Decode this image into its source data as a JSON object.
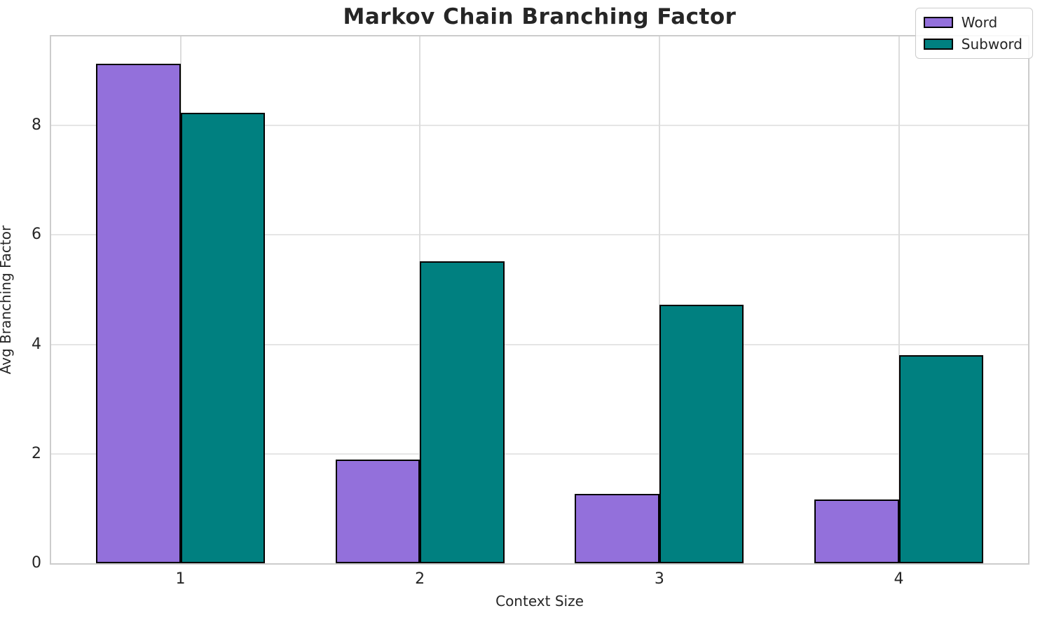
{
  "chart_data": {
    "type": "bar",
    "title": "Markov Chain Branching Factor",
    "xlabel": "Context Size",
    "ylabel": "Avg Branching Factor",
    "categories": [
      "1",
      "2",
      "3",
      "4"
    ],
    "x": [
      1,
      2,
      3,
      4
    ],
    "series": [
      {
        "name": "Word",
        "color": "#9370DB",
        "values": [
          9.13,
          1.9,
          1.27,
          1.17
        ]
      },
      {
        "name": "Subword",
        "color": "#008080",
        "values": [
          8.23,
          5.52,
          4.72,
          3.8
        ]
      }
    ],
    "bar_width": 0.3525,
    "xlim": [
      0.46,
      4.54
    ],
    "ylim": [
      0,
      9.63
    ],
    "yticks": [
      0,
      2,
      4,
      6,
      8
    ],
    "grid": true,
    "grid_color": "#e5e5e5",
    "bar_edge_color": "#000000",
    "legend_position": "upper right",
    "legend_entries": [
      "Word",
      "Subword"
    ]
  }
}
